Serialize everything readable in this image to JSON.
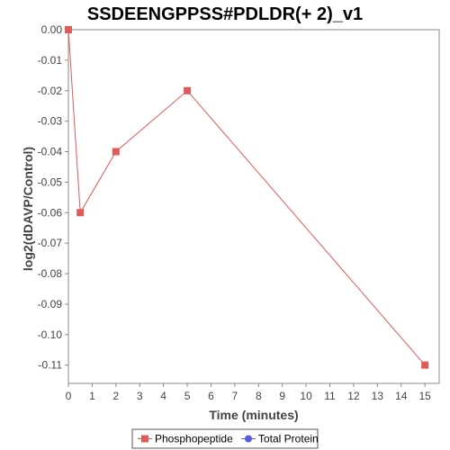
{
  "chart_data": {
    "type": "line",
    "title": "SSDEENGPPSS#PDLDR(+ 2)_v1",
    "xlabel": "Time (minutes)",
    "ylabel": "log2(dDAVP/Control)",
    "xlim": [
      0,
      15.6
    ],
    "ylim": [
      -0.116,
      0.0
    ],
    "x_ticks": [
      0,
      1,
      2,
      3,
      4,
      5,
      6,
      7,
      8,
      9,
      10,
      11,
      12,
      13,
      14,
      15
    ],
    "y_ticks": [
      0.0,
      -0.01,
      -0.02,
      -0.03,
      -0.04,
      -0.05,
      -0.06,
      -0.07,
      -0.08,
      -0.09,
      -0.1,
      -0.11
    ],
    "y_tick_labels": [
      "0.00",
      "-0.01",
      "-0.02",
      "-0.03",
      "-0.04",
      "-0.05",
      "-0.06",
      "-0.07",
      "-0.08",
      "-0.09",
      "-0.10",
      "-0.11"
    ],
    "grid": false,
    "legend_position": "bottom",
    "series": [
      {
        "name": "Phosphopeptide",
        "color": "#e05a5a",
        "marker": "square",
        "x": [
          0,
          0.5,
          2,
          5,
          15
        ],
        "y": [
          0.0,
          -0.06,
          -0.04,
          -0.02,
          -0.11
        ]
      },
      {
        "name": "Total Protein",
        "color": "#5a5ae0",
        "marker": "circle",
        "x": [],
        "y": []
      }
    ]
  }
}
